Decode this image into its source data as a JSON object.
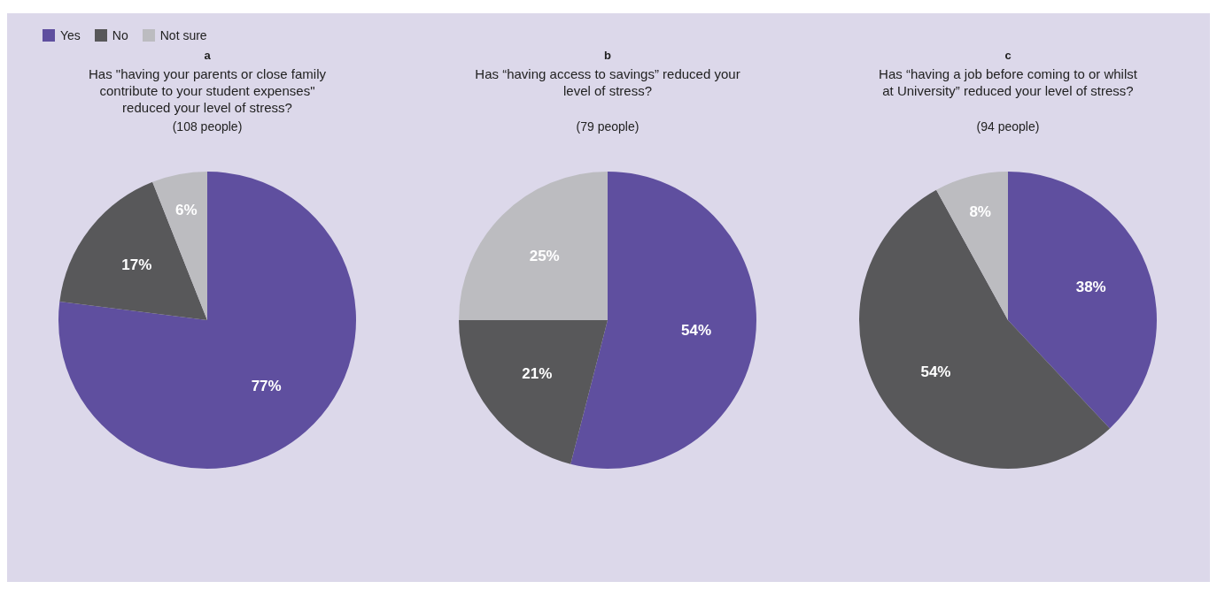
{
  "chart_data": [
    {
      "type": "pie",
      "title": "a",
      "subtitle": "Has \"having your parents or close family contribute to your student expenses\" reduced your level of stress?",
      "annotations": [
        "(108 people)"
      ],
      "categories": [
        "Yes",
        "No",
        "Not sure"
      ],
      "values": [
        77,
        17,
        6
      ],
      "value_labels": [
        "77%",
        "17%",
        "6%"
      ],
      "colors": [
        "#5f4f9f",
        "#58585a",
        "#bcbcc0"
      ],
      "legend": "top left"
    },
    {
      "type": "pie",
      "title": "b",
      "subtitle": "Has “having access to savings” reduced your level of stress?",
      "annotations": [
        "(79 people)"
      ],
      "categories": [
        null,
        null,
        null
      ],
      "values": [
        54,
        21,
        25
      ],
      "value_labels": [
        "54%",
        "21%",
        "25%"
      ],
      "colors": [
        "#5f4f9f",
        "#58585a",
        "#bcbcc0"
      ]
    },
    {
      "type": "pie",
      "title": "c",
      "subtitle": "Has “having a job before coming to or whilst at University” reduced your level of stress?",
      "annotations": [
        "(94 people)"
      ],
      "categories": [
        null,
        null,
        null
      ],
      "values": [
        38,
        54,
        8
      ],
      "value_labels": [
        "38%",
        "54%",
        "8%"
      ],
      "colors": [
        "#5f4f9f",
        "#58585a",
        "#bcbcc0"
      ]
    }
  ]
}
